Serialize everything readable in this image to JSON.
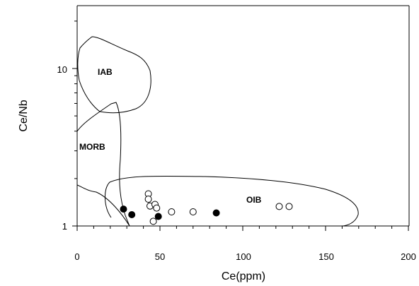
{
  "chart_data": {
    "type": "scatter",
    "xlabel": "Ce(ppm)",
    "ylabel": "Ce/Nb",
    "xlim": [
      0,
      200
    ],
    "ylim": [
      1,
      25
    ],
    "yscale": "log",
    "x_ticks": [
      "0",
      "50",
      "100",
      "150",
      "200"
    ],
    "y_ticks": [
      "1",
      "10"
    ],
    "grid": false,
    "fields": [
      "IAB",
      "MORB",
      "OIB"
    ],
    "series": [
      {
        "marker": "filled-circle",
        "points": [
          [
            28,
            1.28
          ],
          [
            33,
            1.18
          ],
          [
            49,
            1.15
          ],
          [
            84,
            1.21
          ]
        ]
      },
      {
        "marker": "open-circle",
        "points": [
          [
            43,
            1.6
          ],
          [
            43,
            1.48
          ],
          [
            44,
            1.34
          ],
          [
            47,
            1.37
          ],
          [
            48,
            1.3
          ],
          [
            57,
            1.23
          ],
          [
            70,
            1.23
          ],
          [
            46,
            1.07
          ],
          [
            122,
            1.33
          ],
          [
            128,
            1.33
          ]
        ]
      }
    ]
  }
}
